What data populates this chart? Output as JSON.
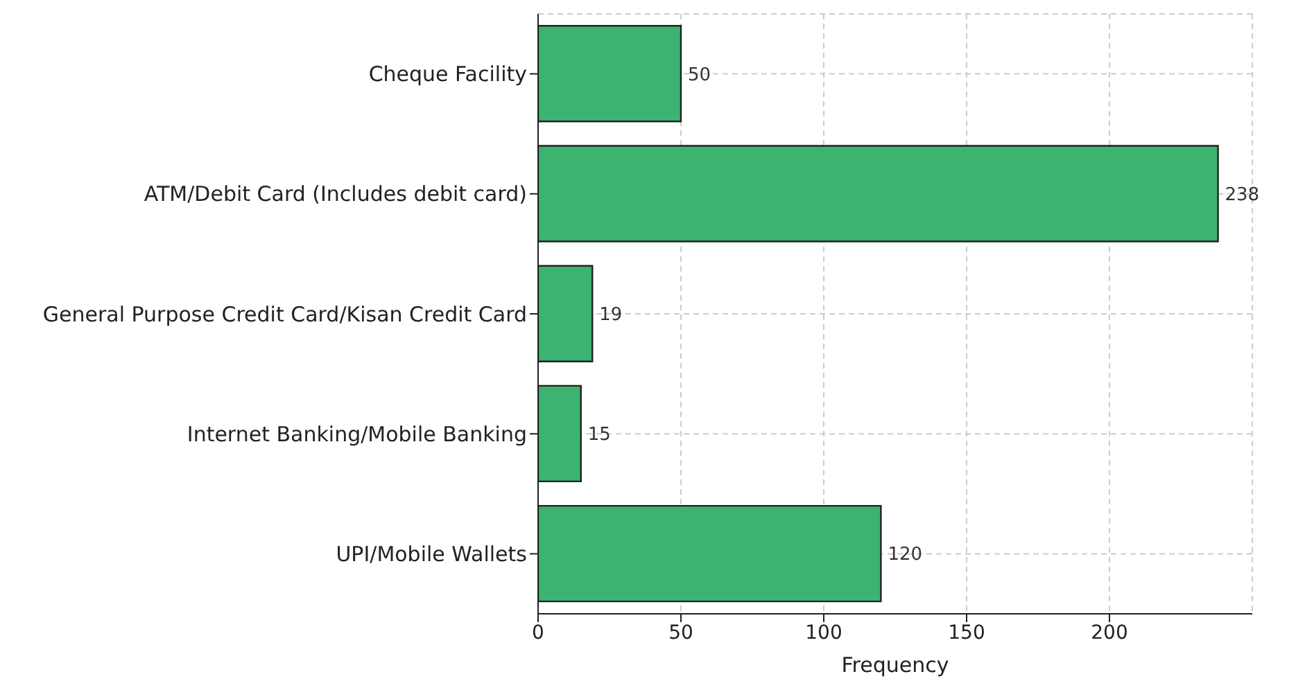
{
  "chart_data": {
    "type": "bar",
    "orientation": "horizontal",
    "xlabel": "Frequency",
    "categories": [
      "Cheque Facility",
      "ATM/Debit Card (Includes debit card)",
      "General Purpose Credit Card/Kisan Credit Card",
      "Internet Banking/Mobile Banking",
      "UPI/Mobile Wallets"
    ],
    "values": [
      50,
      238,
      19,
      15,
      120
    ],
    "color": "#3cb371",
    "xlim": [
      0,
      250
    ],
    "xticks": [
      0,
      50,
      100,
      150,
      200
    ],
    "grid": true,
    "data_labels": true
  }
}
